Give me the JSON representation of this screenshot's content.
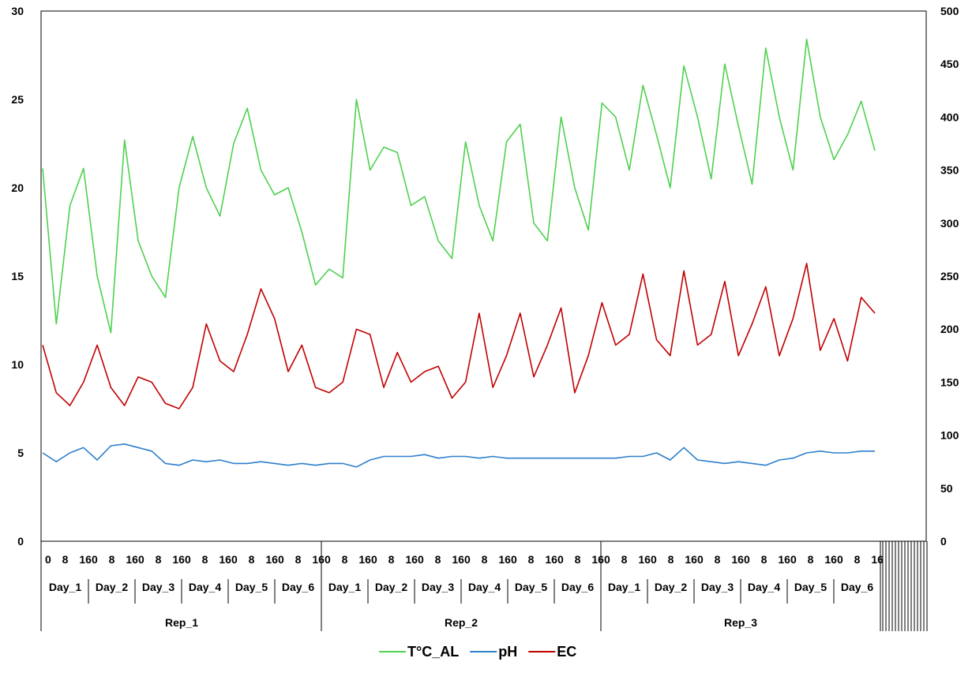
{
  "chart_data": {
    "type": "line",
    "title": "",
    "xlabel": "",
    "ylabel": "",
    "y_left": {
      "min": 0,
      "max": 30,
      "ticks": [
        "0",
        "5",
        "10",
        "15",
        "20",
        "25",
        "30"
      ]
    },
    "y_right": {
      "min": 0,
      "max": 500,
      "ticks": [
        "0",
        "50",
        "100",
        "150",
        "200",
        "250",
        "300",
        "350",
        "400",
        "450",
        "500"
      ]
    },
    "grid": false,
    "legend_position": "bottom",
    "x_hour_ticks": [
      "0",
      "8",
      "16"
    ],
    "days": [
      "Day_1",
      "Day_2",
      "Day_3",
      "Day_4",
      "Day_5",
      "Day_6"
    ],
    "reps": [
      "Rep_1",
      "Rep_2",
      "Rep_3"
    ],
    "points_per_day": 3,
    "series": [
      {
        "name": "T°C_AL",
        "color": "#4fd14f",
        "axis": "left",
        "values": [
          21.1,
          12.3,
          19.0,
          21.1,
          15.0,
          11.8,
          22.7,
          17.0,
          15.0,
          13.8,
          20.0,
          22.9,
          20.0,
          18.4,
          22.5,
          24.5,
          21.0,
          19.6,
          20.0,
          17.5,
          14.5,
          15.4,
          14.9,
          25.0,
          21.0,
          22.3,
          22.0,
          19.0,
          19.5,
          17.0,
          16.0,
          22.6,
          19.0,
          17.0,
          22.6,
          23.6,
          18.0,
          17.0,
          24.0,
          20.0,
          17.6,
          24.8,
          24.0,
          21.0,
          25.8,
          23.0,
          20.0,
          26.9,
          24.0,
          20.5,
          27.0,
          23.5,
          20.2,
          27.9,
          24.0,
          21.0,
          28.4,
          24.0,
          21.6,
          23.0,
          24.9,
          22.1
        ]
      },
      {
        "name": "pH",
        "color": "#2e7fcb",
        "axis": "left",
        "values": [
          5.0,
          4.5,
          5.0,
          5.3,
          4.6,
          5.4,
          5.5,
          5.3,
          5.1,
          4.4,
          4.3,
          4.6,
          4.5,
          4.6,
          4.4,
          4.4,
          4.5,
          4.4,
          4.3,
          4.4,
          4.3,
          4.4,
          4.4,
          4.2,
          4.6,
          4.8,
          4.8,
          4.8,
          4.9,
          4.7,
          4.8,
          4.8,
          4.7,
          4.8,
          4.7,
          4.7,
          4.7,
          4.7,
          4.7,
          4.7,
          4.7,
          4.7,
          4.7,
          4.8,
          4.8,
          5.0,
          4.6,
          5.3,
          4.6,
          4.5,
          4.4,
          4.5,
          4.4,
          4.3,
          4.6,
          4.7,
          5.0,
          5.1,
          5.0,
          5.0,
          5.1,
          5.1
        ]
      },
      {
        "name": "EC",
        "color": "#c00000",
        "axis": "right",
        "values": [
          185,
          140,
          128,
          150,
          185,
          145,
          128,
          155,
          150,
          130,
          125,
          145,
          205,
          170,
          160,
          195,
          238,
          210,
          160,
          185,
          145,
          140,
          150,
          200,
          195,
          145,
          178,
          150,
          160,
          165,
          135,
          150,
          215,
          145,
          175,
          215,
          155,
          185,
          220,
          140,
          175,
          225,
          185,
          195,
          252,
          190,
          175,
          255,
          185,
          195,
          245,
          175,
          205,
          240,
          175,
          210,
          262,
          180,
          210,
          170,
          230,
          215
        ]
      }
    ]
  }
}
